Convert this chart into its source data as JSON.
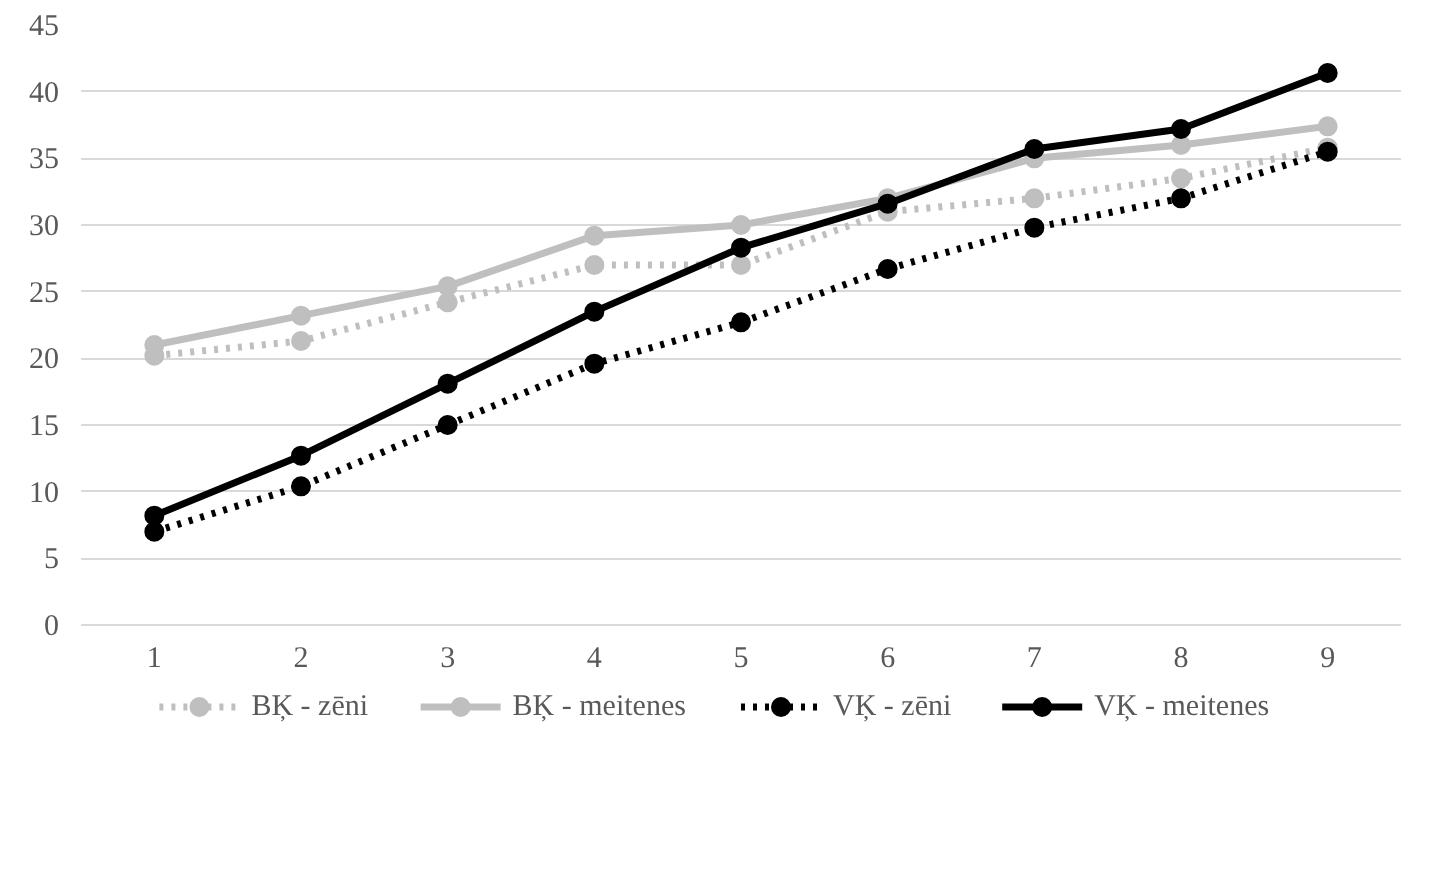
{
  "chart_data": {
    "type": "line",
    "x": [
      1,
      2,
      3,
      4,
      5,
      6,
      7,
      8,
      9
    ],
    "xlim": [
      0.5,
      9.5
    ],
    "xticks": [
      1,
      2,
      3,
      4,
      5,
      6,
      7,
      8,
      9
    ],
    "ylim": [
      0,
      45
    ],
    "yticks": [
      0,
      5,
      10,
      15,
      20,
      25,
      30,
      35,
      40,
      45
    ],
    "grid": "y",
    "legend": "bottom",
    "marker": "circle",
    "series": [
      {
        "name": "BĶ - zēni",
        "color": "#bfbfbf",
        "line_style": "dotted",
        "values": [
          20.2,
          21.3,
          24.2,
          27,
          27,
          31,
          32,
          33.5,
          35.8
        ]
      },
      {
        "name": "BĶ - meitenes",
        "color": "#bfbfbf",
        "line_style": "solid",
        "values": [
          21,
          23.2,
          25.4,
          29.2,
          30,
          32,
          35,
          36,
          37.4
        ]
      },
      {
        "name": "VĶ - zēni",
        "color": "#000000",
        "line_style": "dotted",
        "values": [
          7,
          10.4,
          15,
          19.6,
          22.7,
          26.7,
          29.8,
          32,
          35.5
        ]
      },
      {
        "name": "VĶ - meitenes",
        "color": "#000000",
        "line_style": "solid",
        "values": [
          8.2,
          12.7,
          18.1,
          23.5,
          28.3,
          31.6,
          35.7,
          37.2,
          41.4
        ]
      }
    ]
  }
}
